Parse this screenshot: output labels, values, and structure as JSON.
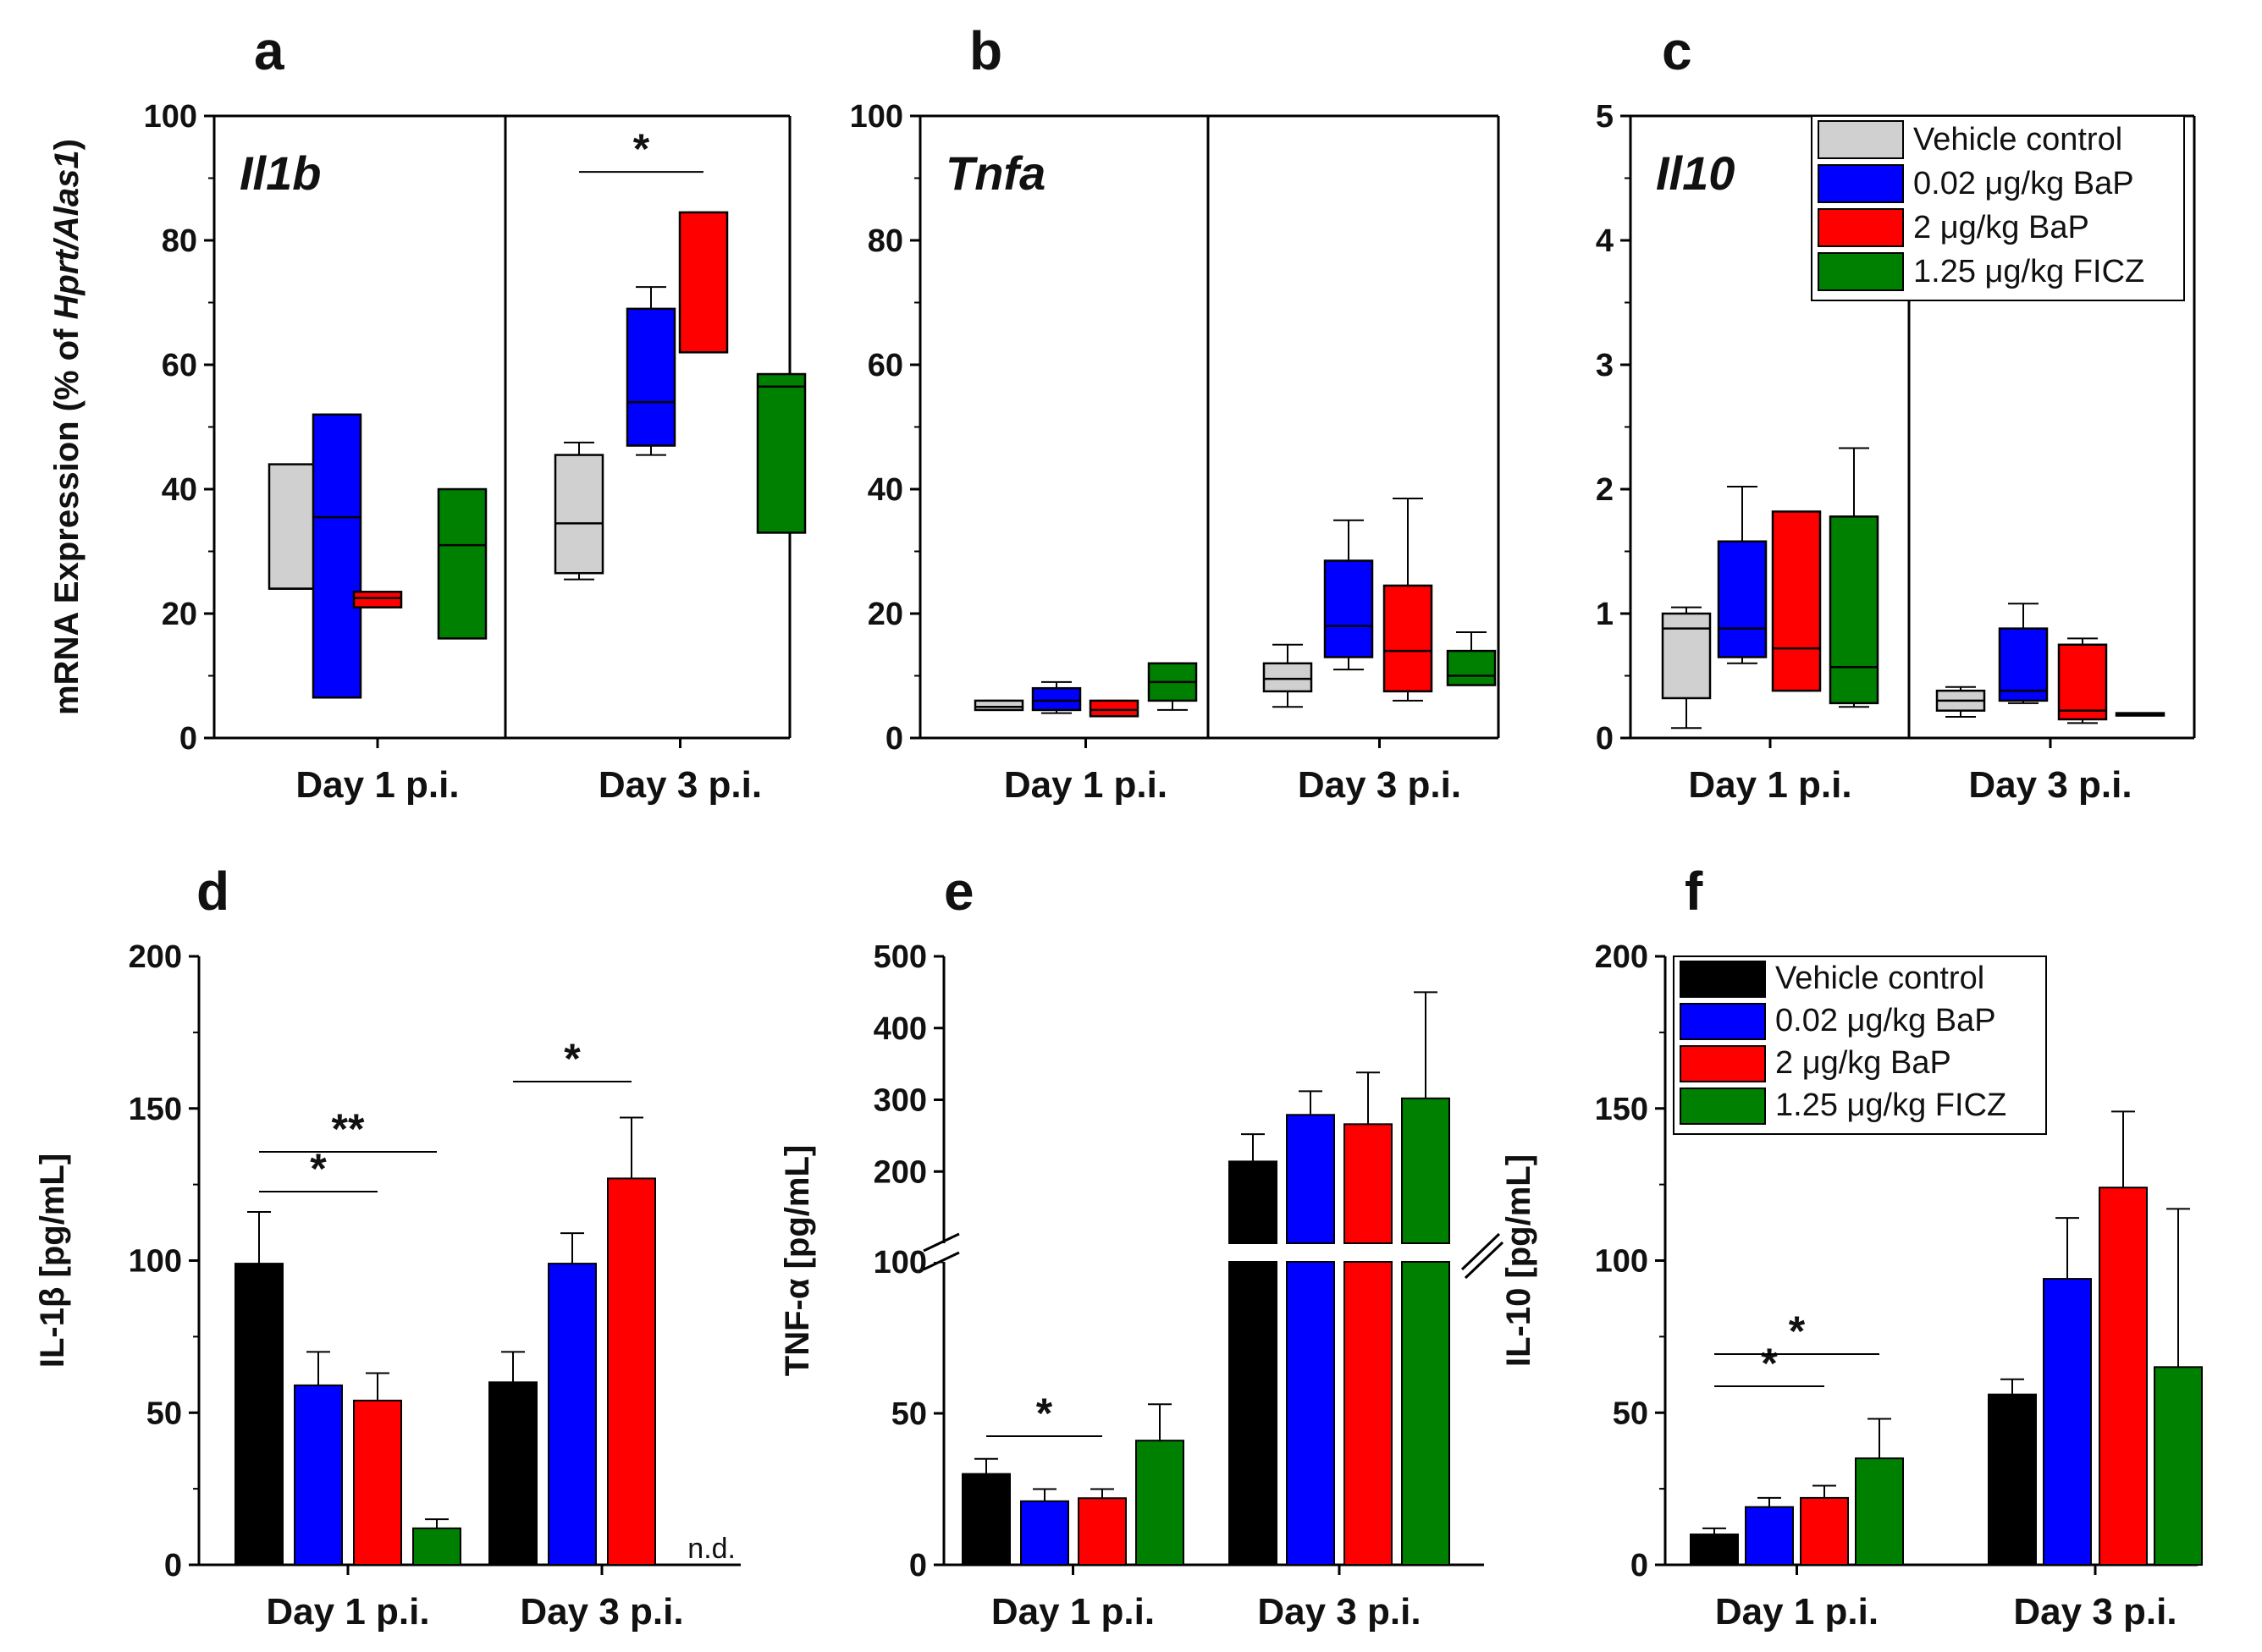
{
  "colors": {
    "vehicle_box": "#d0d0d0",
    "vehicle_bar": "#000000",
    "bap_low": "#0000ff",
    "bap_high": "#ff0000",
    "ficz": "#008000"
  },
  "chart_data": [
    {
      "panel": "a",
      "type": "box",
      "gene": "Il1b",
      "ylabel_parts": [
        "mRNA Expression (% of ",
        "Hprt/Alas1",
        ")"
      ],
      "ylim": [
        0,
        100
      ],
      "yticks": [
        "0",
        "20",
        "40",
        "60",
        "80",
        "100"
      ],
      "categories": [
        "Day 1 p.i.",
        "Day 3 p.i."
      ],
      "series_names": [
        "Vehicle control",
        "0.02 μg/kg BaP",
        "2 μg/kg BaP",
        "1.25 μg/kg FICZ"
      ],
      "boxes": [
        [
          [
            24,
            24,
            24,
            44,
            44
          ],
          [
            6.5,
            6.5,
            35.5,
            52,
            52
          ],
          [
            21,
            21,
            22.5,
            23.5,
            23.5
          ],
          [
            16,
            16,
            31,
            40,
            40
          ]
        ],
        [
          [
            25.5,
            26.5,
            34.5,
            45.5,
            47.5
          ],
          [
            45.5,
            47,
            54,
            69,
            72.5
          ],
          [
            62,
            62,
            62,
            84.5,
            84.5
          ],
          [
            33,
            33,
            56.5,
            58.5,
            58.5
          ]
        ]
      ],
      "significance": [
        {
          "group": 1,
          "from": 0,
          "to": 2,
          "label": "*"
        }
      ],
      "legend_labels": []
    },
    {
      "panel": "b",
      "type": "box",
      "gene": "Tnfa",
      "ylim": [
        0,
        100
      ],
      "yticks": [
        "0",
        "20",
        "40",
        "60",
        "80",
        "100"
      ],
      "categories": [
        "Day 1 p.i.",
        "Day 3 p.i."
      ],
      "series_names": [
        "Vehicle control",
        "0.02 μg/kg BaP",
        "2 μg/kg BaP",
        "1.25 μg/kg FICZ"
      ],
      "boxes": [
        [
          [
            4.5,
            4.5,
            5,
            6,
            6
          ],
          [
            4,
            4.5,
            6,
            8,
            9
          ],
          [
            3.5,
            3.5,
            4.5,
            6,
            6
          ],
          [
            4.5,
            6,
            9,
            12,
            12
          ]
        ],
        [
          [
            5,
            7.5,
            9.5,
            12,
            15
          ],
          [
            11,
            13,
            18,
            28.5,
            35
          ],
          [
            6,
            7.5,
            14,
            24.5,
            38.5
          ],
          [
            8.5,
            8.5,
            10,
            14,
            17
          ]
        ]
      ],
      "significance": [],
      "legend_labels": []
    },
    {
      "panel": "c",
      "type": "box",
      "gene": "Il10",
      "ylim": [
        0,
        5
      ],
      "yticks": [
        "0",
        "1",
        "2",
        "3",
        "4",
        "5"
      ],
      "categories": [
        "Day 1 p.i.",
        "Day 3 p.i."
      ],
      "series_names": [
        "Vehicle control",
        "0.02 μg/kg BaP",
        "2 μg/kg BaP",
        "1.25 μg/kg FICZ"
      ],
      "boxes": [
        [
          [
            0.08,
            0.32,
            0.88,
            1.0,
            1.05
          ],
          [
            0.6,
            0.65,
            0.88,
            1.58,
            2.02
          ],
          [
            0.38,
            0.38,
            0.72,
            1.82,
            1.82
          ],
          [
            0.25,
            0.28,
            0.57,
            1.78,
            2.33
          ]
        ],
        [
          [
            0.17,
            0.22,
            0.3,
            0.38,
            0.41
          ],
          [
            0.28,
            0.3,
            0.38,
            0.88,
            1.08
          ],
          [
            0.12,
            0.15,
            0.22,
            0.75,
            0.8
          ],
          [
            0.18,
            0.18,
            0.19,
            0.2,
            0.2
          ]
        ]
      ],
      "significance": [],
      "legend_labels": [
        "Vehicle control",
        "0.02 μg/kg BaP",
        "2 μg/kg BaP",
        "1.25 μg/kg FICZ"
      ]
    },
    {
      "panel": "d",
      "type": "bar",
      "ylabel": "IL-1β [pg/mL]",
      "ylim": [
        0,
        200
      ],
      "yticks": [
        "0",
        "50",
        "100",
        "150",
        "200"
      ],
      "categories": [
        "Day 1 p.i.",
        "Day 3 p.i."
      ],
      "series": [
        {
          "name": "Vehicle control",
          "values": [
            99,
            60
          ],
          "errors": [
            17,
            10
          ]
        },
        {
          "name": "0.02 μg/kg BaP",
          "values": [
            59,
            99
          ],
          "errors": [
            11,
            10
          ]
        },
        {
          "name": "2 μg/kg BaP",
          "values": [
            54,
            127
          ],
          "errors": [
            9,
            20
          ]
        },
        {
          "name": "1.25 μg/kg FICZ",
          "values": [
            12,
            null
          ],
          "errors": [
            3,
            0
          ]
        }
      ],
      "annotations": [
        "n.d."
      ],
      "significance": [
        {
          "group": 0,
          "from": 0,
          "to": 2,
          "label": "*"
        },
        {
          "group": 0,
          "from": 0,
          "to": 3,
          "label": "**"
        },
        {
          "group": 1,
          "from": 0,
          "to": 2,
          "label": "*"
        }
      ],
      "legend_labels": []
    },
    {
      "panel": "e",
      "type": "bar",
      "ylabel": "TNF-α [pg/mL]",
      "axis_break": true,
      "ylim": [
        0,
        500
      ],
      "yticks_lower": [
        "0",
        "50",
        "100"
      ],
      "yticks_upper": [
        "200",
        "300",
        "400",
        "500"
      ],
      "categories": [
        "Day 1 p.i.",
        "Day 3 p.i."
      ],
      "series": [
        {
          "name": "Vehicle control",
          "values": [
            30,
            214
          ],
          "errors": [
            5,
            38
          ]
        },
        {
          "name": "0.02 μg/kg BaP",
          "values": [
            21,
            279
          ],
          "errors": [
            4,
            33
          ]
        },
        {
          "name": "2 μg/kg BaP",
          "values": [
            22,
            266
          ],
          "errors": [
            3,
            72
          ]
        },
        {
          "name": "1.25 μg/kg FICZ",
          "values": [
            41,
            302
          ],
          "errors": [
            12,
            148
          ]
        }
      ],
      "significance": [
        {
          "group": 0,
          "from": 0,
          "to": 2,
          "label": "*"
        }
      ],
      "legend_labels": []
    },
    {
      "panel": "f",
      "type": "bar",
      "ylabel": "IL-10 [pg/mL]",
      "ylim": [
        0,
        200
      ],
      "yticks": [
        "0",
        "50",
        "100",
        "150",
        "200"
      ],
      "categories": [
        "Day 1 p.i.",
        "Day 3 p.i."
      ],
      "series": [
        {
          "name": "Vehicle control",
          "values": [
            10,
            56
          ],
          "errors": [
            2,
            5
          ]
        },
        {
          "name": "0.02 μg/kg BaP",
          "values": [
            19,
            94
          ],
          "errors": [
            3,
            20
          ]
        },
        {
          "name": "2 μg/kg BaP",
          "values": [
            22,
            124
          ],
          "errors": [
            4,
            25
          ]
        },
        {
          "name": "1.25 μg/kg FICZ",
          "values": [
            35,
            65
          ],
          "errors": [
            13,
            52
          ]
        }
      ],
      "significance": [
        {
          "group": 0,
          "from": 0,
          "to": 2,
          "label": "*"
        },
        {
          "group": 0,
          "from": 0,
          "to": 3,
          "label": "*"
        }
      ],
      "legend_labels": [
        "Vehicle control",
        "0.02 μg/kg BaP",
        "2 μg/kg BaP",
        "1.25 μg/kg FICZ"
      ]
    }
  ]
}
